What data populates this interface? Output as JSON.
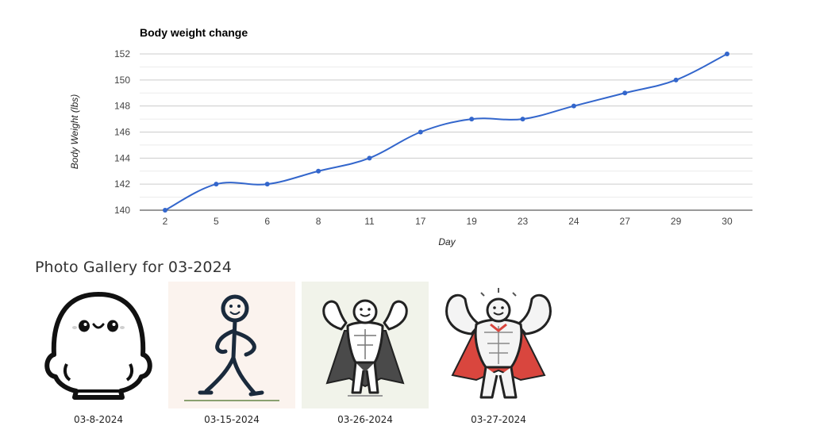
{
  "chart_data": {
    "type": "line",
    "title": "Body weight change",
    "xlabel": "Day",
    "ylabel": "Body Weight (lbs)",
    "categories": [
      "2",
      "5",
      "6",
      "8",
      "11",
      "17",
      "19",
      "23",
      "24",
      "27",
      "29",
      "30"
    ],
    "values": [
      140,
      142,
      142,
      143,
      144,
      146,
      147,
      147,
      148,
      149,
      150,
      152
    ],
    "yticks": [
      140,
      142,
      144,
      146,
      148,
      150,
      152
    ],
    "ylim": [
      140,
      152
    ],
    "grid": true,
    "line_color": "#3366cc"
  },
  "gallery": {
    "title": "Photo Gallery for 03-2024",
    "photos": [
      {
        "date": "03-8-2024",
        "icon": "blob-character-icon"
      },
      {
        "date": "03-15-2024",
        "icon": "stick-figure-icon"
      },
      {
        "date": "03-26-2024",
        "icon": "muscular-caped-figure-icon"
      },
      {
        "date": "03-27-2024",
        "icon": "bodybuilder-caped-figure-icon"
      }
    ]
  }
}
